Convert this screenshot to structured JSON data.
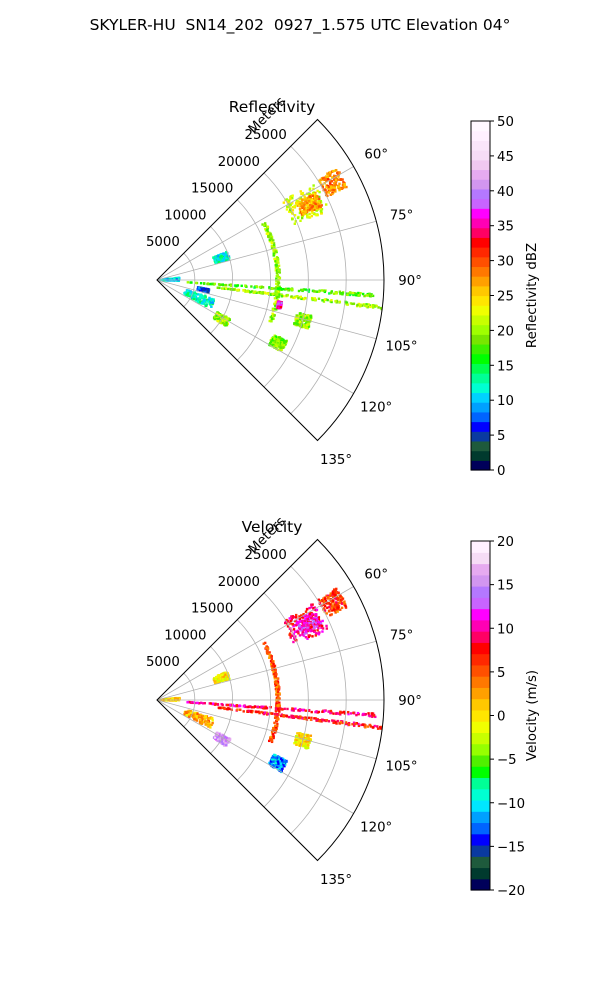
{
  "figure_title": "SKYLER-HU  SN14_202  0927_1.575 UTC Elevation 04°",
  "chart_data": [
    {
      "type": "polar-sector",
      "title": "Reflectivity",
      "radial_label": "Meters",
      "radial_ticks": [
        5000,
        10000,
        15000,
        20000,
        25000
      ],
      "radial_tick_labels": [
        "5000",
        "10000",
        "15000",
        "20000",
        "25000"
      ],
      "radial_max": 30000,
      "angle_range_deg": [
        45,
        135
      ],
      "angle_ticks": [
        60,
        75,
        90,
        105,
        120,
        135
      ],
      "angle_tick_labels": [
        "60°",
        "75°",
        "90°",
        "105°",
        "120°",
        "135°"
      ],
      "grid": true,
      "colorbar": {
        "label": "Reflectivity dBZ",
        "min": 0,
        "max": 50,
        "ticks": [
          0,
          5,
          10,
          15,
          20,
          25,
          30,
          35,
          40,
          45,
          50
        ],
        "tick_labels": [
          "0",
          "5",
          "10",
          "15",
          "20",
          "25",
          "30",
          "35",
          "40",
          "45",
          "50"
        ]
      },
      "features": [
        {
          "kind": "blob",
          "az": [
            58,
            68
          ],
          "range": [
            19500,
            24500
          ],
          "value": 22
        },
        {
          "kind": "blob",
          "az": [
            61,
            66
          ],
          "range": [
            21000,
            24000
          ],
          "value": 27
        },
        {
          "kind": "blob",
          "az": [
            58,
            64
          ],
          "range": [
            25000,
            28000
          ],
          "value": 28
        },
        {
          "kind": "arc",
          "az": [
            62,
            110
          ],
          "range": 16000,
          "value": 20
        },
        {
          "kind": "arc",
          "az": [
            100,
            103
          ],
          "range": 16500,
          "value": 36
        },
        {
          "kind": "ray",
          "az": 94,
          "range": [
            4000,
            29000
          ],
          "value": 18
        },
        {
          "kind": "ray",
          "az": 97,
          "range": [
            8000,
            30000
          ],
          "value": 20
        },
        {
          "kind": "blob",
          "az": [
            108,
            118
          ],
          "range": [
            4000,
            8000
          ],
          "value": 12
        },
        {
          "kind": "blob",
          "az": [
            118,
            124
          ],
          "range": [
            9000,
            11000
          ],
          "value": 20
        },
        {
          "kind": "blob",
          "az": [
            100,
            104
          ],
          "range": [
            5500,
            7000
          ],
          "value": 6
        },
        {
          "kind": "blob",
          "az": [
            84,
            92
          ],
          "range": [
            200,
            3000
          ],
          "value": 10
        },
        {
          "kind": "blob",
          "az": [
            68,
            74
          ],
          "range": [
            8000,
            10000
          ],
          "value": 12
        },
        {
          "kind": "blob",
          "az": [
            115,
            120
          ],
          "range": [
            17000,
            19000
          ],
          "value": 19
        },
        {
          "kind": "blob",
          "az": [
            103,
            108
          ],
          "range": [
            19000,
            21000
          ],
          "value": 20
        }
      ]
    },
    {
      "type": "polar-sector",
      "title": "Velocity",
      "radial_label": "Meters",
      "radial_ticks": [
        5000,
        10000,
        15000,
        20000,
        25000
      ],
      "radial_tick_labels": [
        "5000",
        "10000",
        "15000",
        "20000",
        "25000"
      ],
      "radial_max": 30000,
      "angle_range_deg": [
        45,
        135
      ],
      "angle_ticks": [
        60,
        75,
        90,
        105,
        120,
        135
      ],
      "angle_tick_labels": [
        "60°",
        "75°",
        "90°",
        "105°",
        "120°",
        "135°"
      ],
      "grid": true,
      "colorbar": {
        "label": "Velocity (m/s)",
        "min": -20,
        "max": 20,
        "ticks": [
          -20,
          -15,
          -10,
          -5,
          0,
          5,
          10,
          15,
          20
        ],
        "tick_labels": [
          "−20",
          "−15",
          "−10",
          "−5",
          "0",
          "5",
          "10",
          "15",
          "20"
        ]
      },
      "features": [
        {
          "kind": "blob",
          "az": [
            58,
            68
          ],
          "range": [
            19500,
            24500
          ],
          "value": 9
        },
        {
          "kind": "blob",
          "az": [
            61,
            66
          ],
          "range": [
            21000,
            24000
          ],
          "value": 11
        },
        {
          "kind": "blob",
          "az": [
            58,
            64
          ],
          "range": [
            25000,
            28000
          ],
          "value": 6
        },
        {
          "kind": "arc",
          "az": [
            62,
            110
          ],
          "range": 16000,
          "value": 5
        },
        {
          "kind": "ray",
          "az": 94,
          "range": [
            4000,
            29000
          ],
          "value": 9
        },
        {
          "kind": "ray",
          "az": 97,
          "range": [
            8000,
            30000
          ],
          "value": 7
        },
        {
          "kind": "blob",
          "az": [
            108,
            118
          ],
          "range": [
            4000,
            8000
          ],
          "value": 2
        },
        {
          "kind": "blob",
          "az": [
            118,
            124
          ],
          "range": [
            9000,
            11000
          ],
          "value": 15
        },
        {
          "kind": "blob",
          "az": [
            84,
            92
          ],
          "range": [
            200,
            3000
          ],
          "value": 1
        },
        {
          "kind": "blob",
          "az": [
            68,
            74
          ],
          "range": [
            8000,
            10000
          ],
          "value": 0
        },
        {
          "kind": "blob",
          "az": [
            115,
            120
          ],
          "range": [
            17000,
            19000
          ],
          "value": -12
        },
        {
          "kind": "blob",
          "az": [
            103,
            108
          ],
          "range": [
            19000,
            21000
          ],
          "value": 0
        }
      ]
    }
  ]
}
